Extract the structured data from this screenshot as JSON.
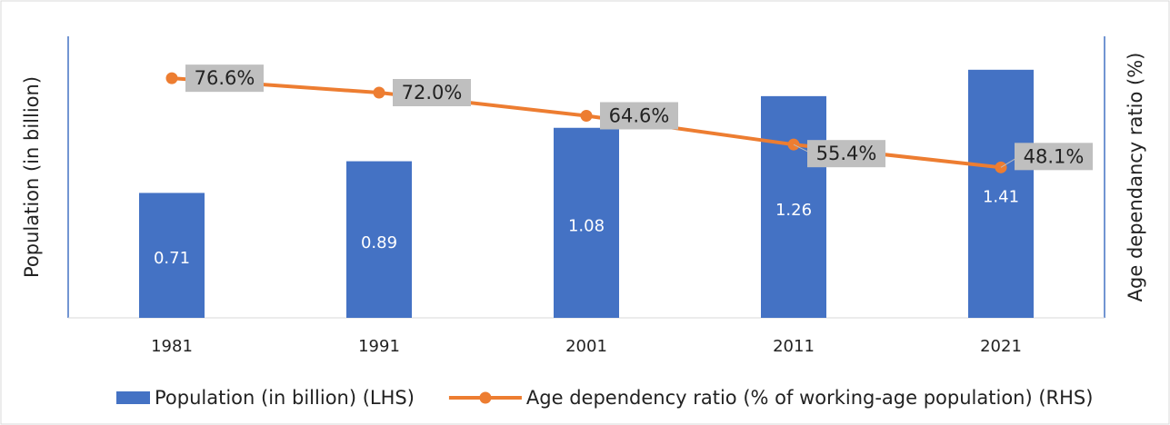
{
  "chart_data": {
    "type": "bar_line",
    "categories": [
      "1981",
      "1991",
      "2001",
      "2011",
      "2021"
    ],
    "ylabel": "Population (in billion)",
    "y2label": "Age dependancy ratio (%)",
    "ylim": [
      0,
      1.6
    ],
    "y2lim": [
      0,
      90
    ],
    "series": [
      {
        "name": "Population (in billion) (LHS)",
        "type": "bar",
        "color": "#4472c4",
        "values": [
          0.71,
          0.89,
          1.08,
          1.26,
          1.41
        ]
      },
      {
        "name": "Age dependency ratio (% of working-age population) (RHS)",
        "type": "line",
        "axis": "y2",
        "color": "#ed7d31",
        "values": [
          76.6,
          72.0,
          64.6,
          55.4,
          48.1
        ],
        "value_labels": [
          "76.6%",
          "72.0%",
          "64.6%",
          "55.4%",
          "48.1%"
        ]
      }
    ]
  }
}
